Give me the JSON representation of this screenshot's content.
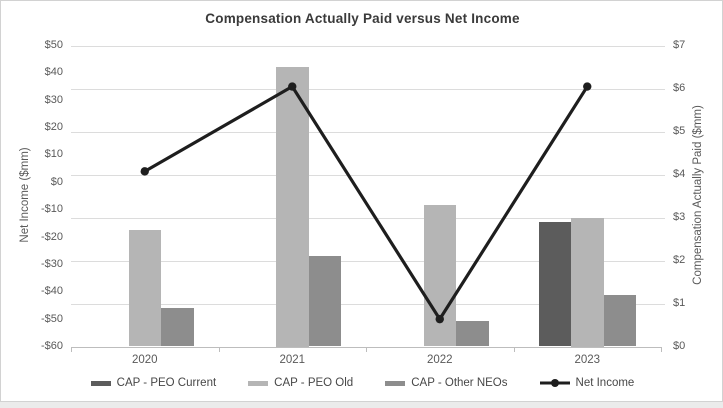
{
  "title": "Compensation Actually Paid versus Net Income",
  "colors": {
    "cap_peo_current": "#5c5c5c",
    "cap_peo_old": "#b5b5b5",
    "cap_other_neos": "#8d8d8d",
    "net_income_line": "#1e1e1e",
    "gridline": "#dcdcdc",
    "axis_line": "#bdbdbd",
    "tick_text": "#595959",
    "title_text": "#3a3a3a",
    "card_background": "#ffffff",
    "page_background": "#ebebeb"
  },
  "left_axis": {
    "title": "Net Income ($mm)",
    "ticks": [
      "$50",
      "$40",
      "$30",
      "$20",
      "$10",
      "$0",
      "-$10",
      "-$20",
      "-$30",
      "-$40",
      "-$50",
      "-$60"
    ]
  },
  "right_axis": {
    "title": "Compensation Actually Paid ($mm)",
    "ticks": [
      "$7",
      "$6",
      "$5",
      "$4",
      "$3",
      "$2",
      "$1",
      "$0"
    ]
  },
  "x_axis": {
    "categories": [
      "2020",
      "2021",
      "2022",
      "2023"
    ]
  },
  "legend": [
    {
      "label": "CAP - PEO Current",
      "swatch": "bar",
      "color": "#5c5c5c"
    },
    {
      "label": "CAP - PEO Old",
      "swatch": "bar",
      "color": "#b5b5b5"
    },
    {
      "label": "CAP - Other NEOs",
      "swatch": "bar",
      "color": "#8d8d8d"
    },
    {
      "label": "Net Income",
      "swatch": "line",
      "color": "#1e1e1e"
    }
  ],
  "chart_data": {
    "type": "bar",
    "subtype": "grouped bars with overlaid line (dual axis)",
    "title": "Compensation Actually Paid versus Net Income",
    "categories": [
      "2020",
      "2021",
      "2022",
      "2023"
    ],
    "left_ylabel": "Net Income ($mm)",
    "left_ylim": [
      -60,
      50
    ],
    "left_tick_step": 10,
    "right_ylabel": "Compensation Actually Paid ($mm)",
    "right_ylim": [
      0,
      7
    ],
    "right_tick_step": 1,
    "grid": "horizontal gridlines at right-axis $1 intervals",
    "legend_position": "bottom center",
    "series": [
      {
        "name": "CAP - PEO Current",
        "type": "bar",
        "axis": "right",
        "color": "#5c5c5c",
        "values": [
          null,
          null,
          null,
          2.9
        ]
      },
      {
        "name": "CAP - PEO Old",
        "type": "bar",
        "axis": "right",
        "color": "#b5b5b5",
        "values": [
          2.7,
          6.5,
          3.3,
          3.0
        ]
      },
      {
        "name": "CAP - Other NEOs",
        "type": "bar",
        "axis": "right",
        "color": "#8d8d8d",
        "values": [
          0.9,
          2.1,
          0.6,
          1.2
        ]
      },
      {
        "name": "Net Income",
        "type": "line",
        "axis": "left",
        "color": "#1e1e1e",
        "values": [
          4,
          35,
          -50,
          35
        ]
      }
    ]
  }
}
